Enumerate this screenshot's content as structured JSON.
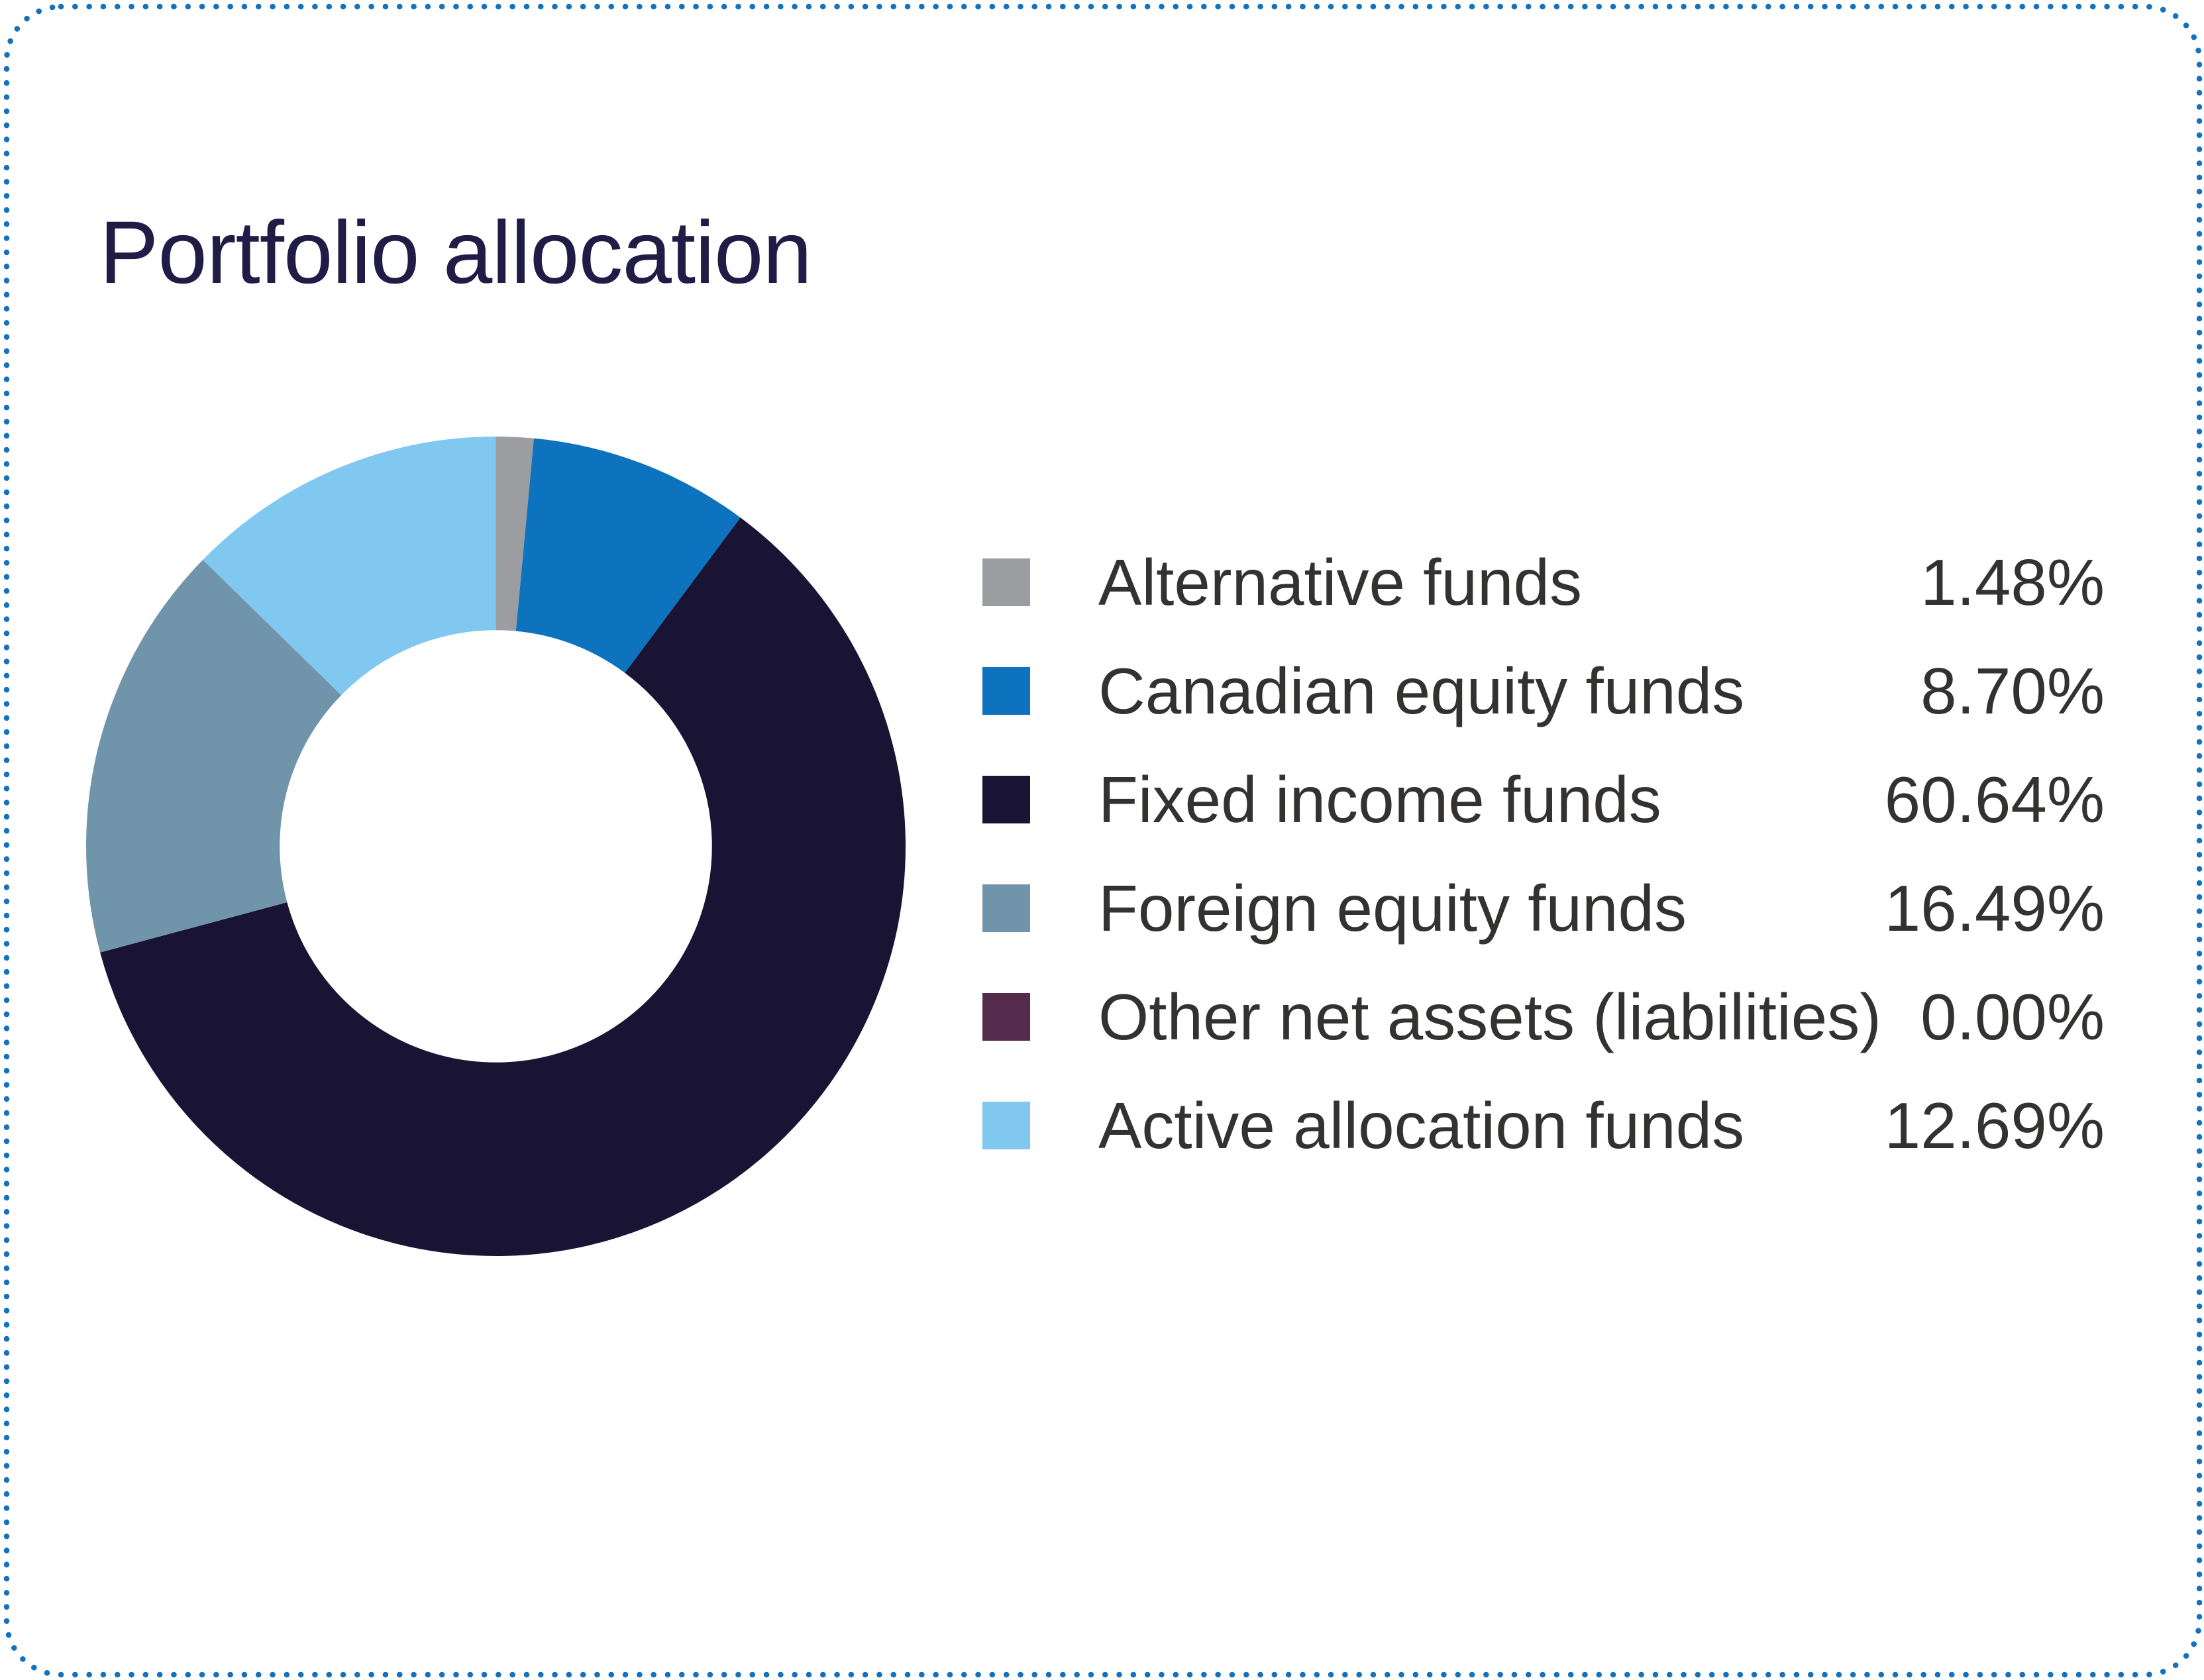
{
  "card": {
    "title": "Portfolio allocation"
  },
  "palette": {
    "background": "#ffffff",
    "dotted_border": "#1272bd",
    "title_text": "#201c45",
    "legend_text": "#333231"
  },
  "chart_data": {
    "type": "pie",
    "subtype": "donut",
    "title": "Portfolio allocation",
    "start_angle": "top",
    "direction": "clockwise",
    "legend_position": "right",
    "inner_radius_ratio": 0.53,
    "series": [
      {
        "label": "Alternative funds",
        "value": 1.48,
        "display": "1.48%",
        "color": "#9b9da0"
      },
      {
        "label": "Canadian equity funds",
        "value": 8.7,
        "display": "8.70%",
        "color": "#0e73be"
      },
      {
        "label": "Fixed income funds",
        "value": 60.64,
        "display": "60.64%",
        "color": "#191434"
      },
      {
        "label": "Foreign equity funds",
        "value": 16.49,
        "display": "16.49%",
        "color": "#7094a9"
      },
      {
        "label": "Other net assets (liabilities)",
        "value": 0.0,
        "display": "0.00%",
        "color": "#552b4d"
      },
      {
        "label": "Active allocation funds",
        "value": 12.69,
        "display": "12.69%",
        "color": "#80c8f0"
      }
    ]
  }
}
